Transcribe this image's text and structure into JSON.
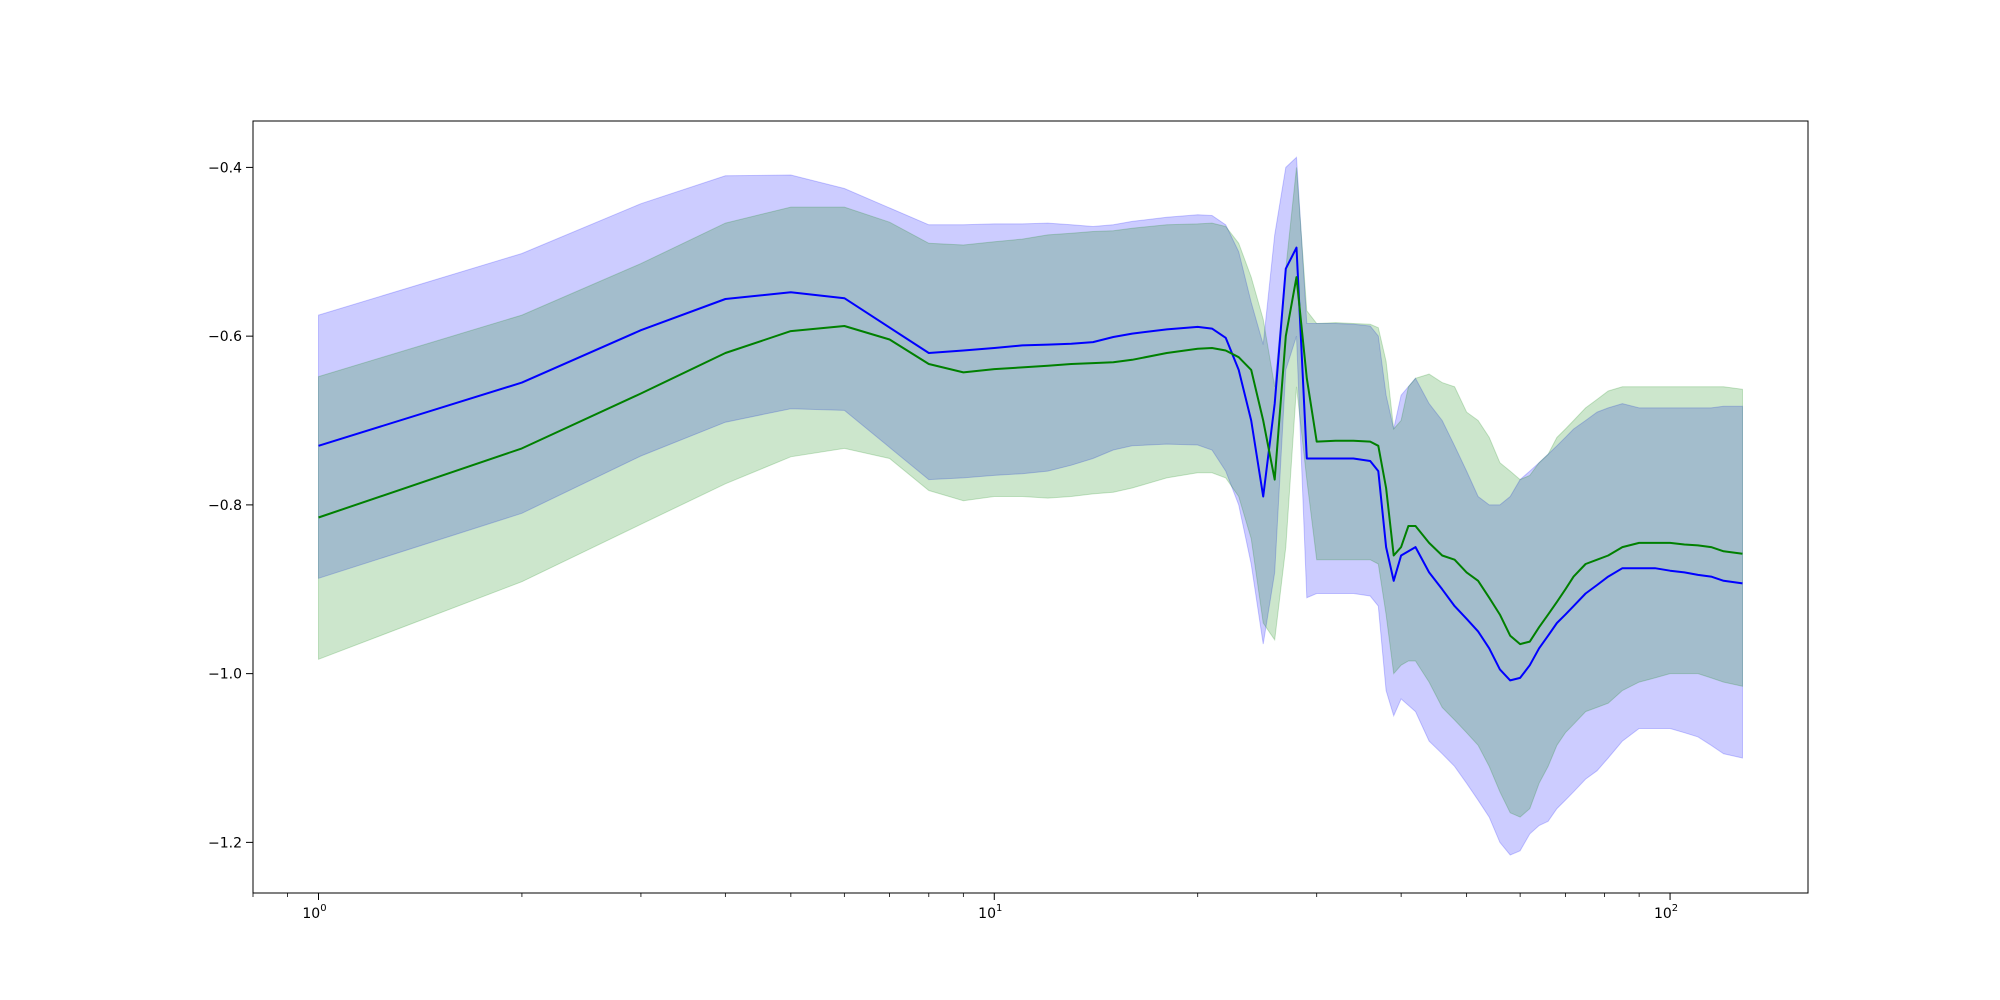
{
  "chart_data": {
    "type": "line",
    "title": "",
    "xlabel": "",
    "ylabel": "",
    "xscale": "log",
    "xlim": [
      0.8,
      160
    ],
    "ylim": [
      -1.26,
      -0.345
    ],
    "grid": false,
    "legend": "none",
    "x_ticks": [
      {
        "value": 1,
        "base": "10",
        "exp": "0"
      },
      {
        "value": 10,
        "base": "10",
        "exp": "1"
      },
      {
        "value": 100,
        "base": "10",
        "exp": "2"
      }
    ],
    "y_ticks": [
      {
        "value": -0.4,
        "label": "−0.4"
      },
      {
        "value": -0.6,
        "label": "−0.6"
      },
      {
        "value": -0.8,
        "label": "−0.8"
      },
      {
        "value": -1.0,
        "label": "−1.0"
      },
      {
        "value": -1.2,
        "label": "−1.2"
      }
    ],
    "series": [
      {
        "color": "#0000ff",
        "band_fill": "#0000ff",
        "band_opacity": 0.2,
        "x": [
          1,
          2,
          3,
          4,
          5,
          6,
          8,
          9,
          10,
          11,
          12,
          13,
          14,
          15,
          16,
          18,
          20,
          21,
          22,
          23,
          24,
          25,
          26,
          27,
          28,
          29,
          30,
          32,
          34,
          36,
          37,
          38,
          39,
          40,
          42,
          44,
          46,
          48,
          50,
          52,
          54,
          56,
          58,
          60,
          62,
          64,
          66,
          68,
          70,
          72,
          75,
          78,
          81,
          85,
          90,
          95,
          100,
          105,
          110,
          115,
          120,
          128
        ],
        "y": [
          -0.73,
          -0.655,
          -0.593,
          -0.556,
          -0.548,
          -0.555,
          -0.62,
          -0.617,
          -0.614,
          -0.611,
          -0.61,
          -0.609,
          -0.607,
          -0.601,
          -0.597,
          -0.592,
          -0.589,
          -0.591,
          -0.602,
          -0.64,
          -0.7,
          -0.79,
          -0.68,
          -0.52,
          -0.495,
          -0.745,
          -0.745,
          -0.745,
          -0.745,
          -0.748,
          -0.76,
          -0.85,
          -0.89,
          -0.86,
          -0.85,
          -0.88,
          -0.9,
          -0.92,
          -0.935,
          -0.95,
          -0.97,
          -0.995,
          -1.008,
          -1.005,
          -0.99,
          -0.97,
          -0.955,
          -0.94,
          -0.93,
          -0.92,
          -0.905,
          -0.895,
          -0.885,
          -0.875,
          -0.875,
          -0.875,
          -0.878,
          -0.88,
          -0.883,
          -0.885,
          -0.89,
          -0.893
        ],
        "upper": [
          -0.575,
          -0.502,
          -0.443,
          -0.41,
          -0.409,
          -0.425,
          -0.468,
          -0.468,
          -0.467,
          -0.467,
          -0.466,
          -0.468,
          -0.47,
          -0.468,
          -0.464,
          -0.459,
          -0.456,
          -0.457,
          -0.468,
          -0.5,
          -0.56,
          -0.61,
          -0.48,
          -0.4,
          -0.388,
          -0.585,
          -0.585,
          -0.585,
          -0.586,
          -0.588,
          -0.6,
          -0.67,
          -0.71,
          -0.67,
          -0.65,
          -0.68,
          -0.7,
          -0.73,
          -0.76,
          -0.79,
          -0.8,
          -0.8,
          -0.79,
          -0.77,
          -0.76,
          -0.75,
          -0.74,
          -0.73,
          -0.72,
          -0.71,
          -0.7,
          -0.69,
          -0.685,
          -0.68,
          -0.685,
          -0.685,
          -0.685,
          -0.685,
          -0.685,
          -0.685,
          -0.683,
          -0.683
        ],
        "lower": [
          -0.887,
          -0.81,
          -0.742,
          -0.702,
          -0.686,
          -0.688,
          -0.77,
          -0.768,
          -0.765,
          -0.763,
          -0.76,
          -0.753,
          -0.745,
          -0.735,
          -0.73,
          -0.728,
          -0.729,
          -0.735,
          -0.76,
          -0.8,
          -0.87,
          -0.965,
          -0.88,
          -0.64,
          -0.6,
          -0.91,
          -0.905,
          -0.905,
          -0.905,
          -0.908,
          -0.92,
          -1.02,
          -1.05,
          -1.03,
          -1.045,
          -1.08,
          -1.095,
          -1.11,
          -1.13,
          -1.15,
          -1.17,
          -1.2,
          -1.215,
          -1.21,
          -1.19,
          -1.18,
          -1.175,
          -1.16,
          -1.15,
          -1.14,
          -1.125,
          -1.115,
          -1.1,
          -1.08,
          -1.065,
          -1.065,
          -1.065,
          -1.07,
          -1.075,
          -1.085,
          -1.095,
          -1.1
        ]
      },
      {
        "color": "#008000",
        "band_fill": "#008000",
        "band_opacity": 0.2,
        "x": [
          1,
          2,
          3,
          4,
          5,
          6,
          7,
          8,
          9,
          10,
          11,
          12,
          13,
          14,
          15,
          16,
          18,
          20,
          21,
          22,
          23,
          24,
          25,
          26,
          27,
          28,
          29,
          30,
          32,
          34,
          36,
          37,
          38,
          39,
          40,
          41,
          42,
          44,
          46,
          48,
          50,
          52,
          54,
          56,
          58,
          60,
          62,
          64,
          66,
          68,
          70,
          72,
          75,
          78,
          81,
          85,
          90,
          95,
          100,
          105,
          110,
          115,
          120,
          128
        ],
        "y": [
          -0.815,
          -0.733,
          -0.668,
          -0.62,
          -0.594,
          -0.588,
          -0.604,
          -0.633,
          -0.643,
          -0.639,
          -0.637,
          -0.635,
          -0.633,
          -0.632,
          -0.631,
          -0.628,
          -0.62,
          -0.615,
          -0.614,
          -0.617,
          -0.625,
          -0.64,
          -0.7,
          -0.77,
          -0.6,
          -0.53,
          -0.65,
          -0.725,
          -0.724,
          -0.724,
          -0.725,
          -0.73,
          -0.78,
          -0.86,
          -0.85,
          -0.825,
          -0.825,
          -0.845,
          -0.86,
          -0.865,
          -0.88,
          -0.89,
          -0.91,
          -0.93,
          -0.955,
          -0.965,
          -0.962,
          -0.945,
          -0.93,
          -0.915,
          -0.9,
          -0.885,
          -0.87,
          -0.865,
          -0.86,
          -0.85,
          -0.845,
          -0.845,
          -0.845,
          -0.847,
          -0.848,
          -0.85,
          -0.855,
          -0.858
        ],
        "upper": [
          -0.648,
          -0.575,
          -0.514,
          -0.466,
          -0.447,
          -0.447,
          -0.465,
          -0.49,
          -0.492,
          -0.488,
          -0.485,
          -0.48,
          -0.478,
          -0.476,
          -0.475,
          -0.472,
          -0.468,
          -0.467,
          -0.466,
          -0.47,
          -0.49,
          -0.53,
          -0.58,
          -0.66,
          -0.52,
          -0.4,
          -0.57,
          -0.585,
          -0.584,
          -0.585,
          -0.586,
          -0.59,
          -0.63,
          -0.71,
          -0.7,
          -0.66,
          -0.65,
          -0.645,
          -0.655,
          -0.66,
          -0.69,
          -0.7,
          -0.72,
          -0.75,
          -0.76,
          -0.77,
          -0.765,
          -0.75,
          -0.74,
          -0.72,
          -0.71,
          -0.7,
          -0.685,
          -0.675,
          -0.665,
          -0.66,
          -0.66,
          -0.66,
          -0.66,
          -0.66,
          -0.66,
          -0.66,
          -0.66,
          -0.663
        ],
        "lower": [
          -0.983,
          -0.891,
          -0.823,
          -0.775,
          -0.743,
          -0.733,
          -0.745,
          -0.783,
          -0.795,
          -0.79,
          -0.79,
          -0.792,
          -0.79,
          -0.787,
          -0.785,
          -0.78,
          -0.768,
          -0.762,
          -0.762,
          -0.768,
          -0.79,
          -0.84,
          -0.94,
          -0.96,
          -0.85,
          -0.66,
          -0.77,
          -0.865,
          -0.865,
          -0.865,
          -0.865,
          -0.87,
          -0.93,
          -1.0,
          -0.99,
          -0.985,
          -0.985,
          -1.01,
          -1.04,
          -1.055,
          -1.07,
          -1.085,
          -1.11,
          -1.14,
          -1.165,
          -1.17,
          -1.16,
          -1.13,
          -1.11,
          -1.085,
          -1.07,
          -1.06,
          -1.045,
          -1.04,
          -1.035,
          -1.02,
          -1.01,
          -1.005,
          -1.0,
          -1.0,
          -1.0,
          -1.005,
          -1.01,
          -1.015
        ]
      }
    ]
  }
}
